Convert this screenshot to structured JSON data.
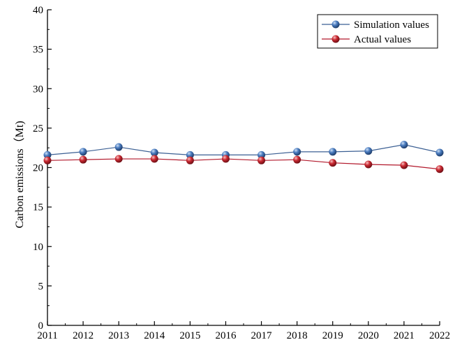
{
  "chart_data": {
    "type": "line",
    "title": "",
    "xlabel": "",
    "ylabel": "Carbon emissions（Mt)",
    "x": [
      2011,
      2012,
      2013,
      2014,
      2015,
      2016,
      2017,
      2018,
      2019,
      2020,
      2021,
      2022
    ],
    "x_tick_labels": [
      "2011",
      "2012",
      "2013",
      "2014",
      "2015",
      "2016",
      "2017",
      "2018",
      "2019",
      "2020",
      "2021",
      "2022"
    ],
    "y_ticks": [
      0,
      5,
      10,
      15,
      20,
      25,
      30,
      35,
      40
    ],
    "y_tick_labels": [
      "0",
      "5",
      "10",
      "15",
      "20",
      "25",
      "30",
      "35",
      "40"
    ],
    "xlim": [
      2011,
      2022
    ],
    "ylim": [
      0,
      40
    ],
    "grid": false,
    "legend_position": "top-right",
    "series": [
      {
        "name": "Simulation values",
        "color": "#3b5f93",
        "marker_color": "#3d6eb0",
        "values": [
          21.6,
          22.0,
          22.6,
          21.9,
          21.6,
          21.6,
          21.6,
          22.0,
          22.0,
          22.1,
          22.9,
          21.9
        ]
      },
      {
        "name": "Actual values",
        "color": "#b2182b",
        "marker_color": "#c8232f",
        "values": [
          20.9,
          21.0,
          21.1,
          21.1,
          20.9,
          21.1,
          20.9,
          21.0,
          20.6,
          20.4,
          20.3,
          19.8
        ]
      }
    ]
  }
}
